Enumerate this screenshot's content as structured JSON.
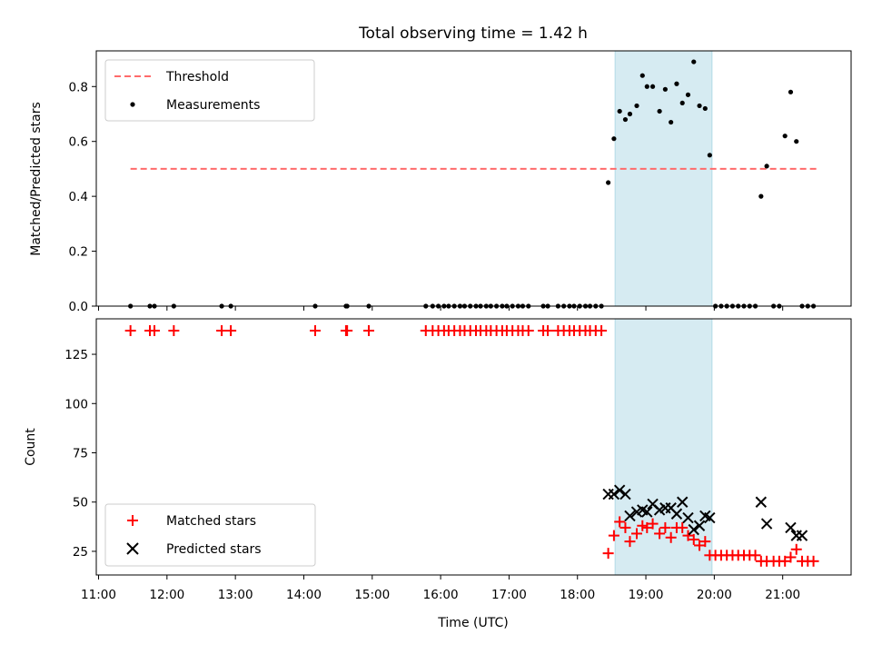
{
  "chart_data": [
    {
      "type": "scatter",
      "title": "Total observing time = 1.42 h",
      "xlabel": "",
      "ylabel": "Matched/Predicted stars",
      "xlim": [
        "10:58",
        "22:00"
      ],
      "ylim": [
        0,
        0.93
      ],
      "yticks": [
        "0.0",
        "0.2",
        "0.4",
        "0.6",
        "0.8"
      ],
      "legend_position": "top-left",
      "grid": false,
      "shaded_interval": {
        "start": "18:33",
        "end": "19:58",
        "color": "#add8e6"
      },
      "series": [
        {
          "name": "Threshold",
          "style": "dashed-line",
          "color": "#ff6b6b",
          "x": [
            "11:28",
            "21:32"
          ],
          "y": [
            0.5,
            0.5
          ]
        },
        {
          "name": "Measurements",
          "style": "dot",
          "color": "#000000",
          "x": [
            "11:28",
            "11:45",
            "11:49",
            "12:06",
            "12:48",
            "12:56",
            "14:10",
            "14:37",
            "14:38",
            "14:57",
            "15:47",
            "15:53",
            "15:58",
            "16:03",
            "16:07",
            "16:12",
            "16:17",
            "16:21",
            "16:26",
            "16:31",
            "16:35",
            "16:40",
            "16:44",
            "16:49",
            "16:54",
            "16:58",
            "17:03",
            "17:08",
            "17:12",
            "17:17",
            "17:30",
            "17:34",
            "17:43",
            "17:48",
            "17:53",
            "17:57",
            "18:02",
            "18:07",
            "18:11",
            "18:16",
            "18:21",
            "18:27",
            "18:32",
            "18:37",
            "18:42",
            "18:46",
            "18:52",
            "18:57",
            "19:01",
            "19:06",
            "19:12",
            "19:17",
            "19:22",
            "19:27",
            "19:32",
            "19:37",
            "19:42",
            "19:47",
            "19:52",
            "19:56",
            "20:01",
            "20:06",
            "20:11",
            "20:16",
            "20:21",
            "20:26",
            "20:31",
            "20:36",
            "20:41",
            "20:46",
            "20:52",
            "20:57",
            "21:02",
            "21:07",
            "21:12",
            "21:17",
            "21:22",
            "21:27"
          ],
          "y": [
            0,
            0,
            0,
            0,
            0,
            0,
            0,
            0,
            0,
            0,
            0,
            0,
            0,
            0,
            0,
            0,
            0,
            0,
            0,
            0,
            0,
            0,
            0,
            0,
            0,
            0,
            0,
            0,
            0,
            0,
            0,
            0,
            0,
            0,
            0,
            0,
            0,
            0,
            0,
            0,
            0,
            0.45,
            0.61,
            0.71,
            0.68,
            0.7,
            0.73,
            0.84,
            0.8,
            0.8,
            0.71,
            0.79,
            0.67,
            0.81,
            0.74,
            0.77,
            0.89,
            0.73,
            0.72,
            0.55,
            0,
            0,
            0,
            0,
            0,
            0,
            0,
            0,
            0.4,
            0.51,
            0,
            0,
            0.62,
            0.78,
            0.6,
            0,
            0,
            0
          ]
        }
      ]
    },
    {
      "type": "scatter",
      "title": "",
      "xlabel": "Time (UTC)",
      "ylabel": "Count",
      "xlim": [
        "10:58",
        "22:00"
      ],
      "ylim": [
        13,
        143
      ],
      "yticks": [
        "25",
        "50",
        "75",
        "100",
        "125"
      ],
      "xticks": [
        "11:00",
        "12:00",
        "13:00",
        "14:00",
        "15:00",
        "16:00",
        "17:00",
        "18:00",
        "19:00",
        "20:00",
        "21:00"
      ],
      "legend_position": "bottom-left",
      "grid": false,
      "shaded_interval": {
        "start": "18:33",
        "end": "19:58",
        "color": "#add8e6"
      },
      "series": [
        {
          "name": "Matched stars",
          "marker": "plus",
          "color": "#ff0000",
          "x": [
            "11:28",
            "11:45",
            "11:49",
            "12:06",
            "12:48",
            "12:56",
            "14:10",
            "14:37",
            "14:38",
            "14:57",
            "15:47",
            "15:53",
            "15:58",
            "16:03",
            "16:07",
            "16:12",
            "16:17",
            "16:21",
            "16:26",
            "16:31",
            "16:35",
            "16:40",
            "16:44",
            "16:49",
            "16:54",
            "16:58",
            "17:03",
            "17:08",
            "17:12",
            "17:17",
            "17:30",
            "17:34",
            "17:43",
            "17:48",
            "17:53",
            "17:57",
            "18:02",
            "18:07",
            "18:11",
            "18:16",
            "18:21",
            "18:27",
            "18:32",
            "18:37",
            "18:42",
            "18:46",
            "18:52",
            "18:57",
            "19:01",
            "19:06",
            "19:12",
            "19:17",
            "19:22",
            "19:27",
            "19:32",
            "19:37",
            "19:42",
            "19:47",
            "19:52",
            "19:56",
            "20:01",
            "20:06",
            "20:11",
            "20:16",
            "20:21",
            "20:26",
            "20:31",
            "20:36",
            "20:41",
            "20:46",
            "20:52",
            "20:57",
            "21:02",
            "21:07",
            "21:12",
            "21:17",
            "21:22",
            "21:27"
          ],
          "y": [
            137,
            137,
            137,
            137,
            137,
            137,
            137,
            137,
            137,
            137,
            137,
            137,
            137,
            137,
            137,
            137,
            137,
            137,
            137,
            137,
            137,
            137,
            137,
            137,
            137,
            137,
            137,
            137,
            137,
            137,
            137,
            137,
            137,
            137,
            137,
            137,
            137,
            137,
            137,
            137,
            137,
            24,
            33,
            40,
            37,
            30,
            34,
            38,
            37,
            39,
            34,
            37,
            32,
            37,
            37,
            33,
            31,
            28,
            30,
            23,
            23,
            23,
            23,
            23,
            23,
            23,
            23,
            23,
            20,
            20,
            20,
            20,
            20,
            22,
            26,
            20,
            20,
            20
          ]
        },
        {
          "name": "Predicted stars",
          "marker": "x",
          "color": "#000000",
          "x": [
            "18:27",
            "18:32",
            "18:37",
            "18:42",
            "18:46",
            "18:52",
            "18:57",
            "19:01",
            "19:06",
            "19:12",
            "19:17",
            "19:22",
            "19:27",
            "19:32",
            "19:37",
            "19:42",
            "19:47",
            "19:52",
            "19:56",
            "20:41",
            "20:46",
            "21:07",
            "21:12",
            "21:17"
          ],
          "y": [
            54,
            54,
            56,
            54,
            43,
            45,
            46,
            45,
            49,
            46,
            47,
            47,
            44,
            50,
            42,
            36,
            38,
            43,
            42,
            50,
            39,
            37,
            33,
            33
          ]
        }
      ]
    }
  ]
}
